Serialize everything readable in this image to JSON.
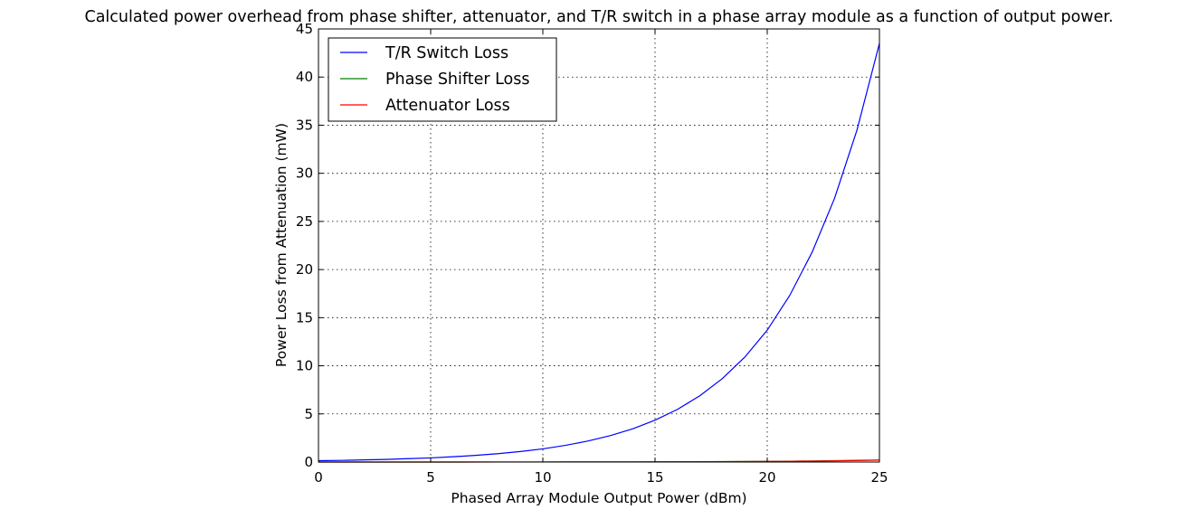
{
  "chart_data": {
    "type": "line",
    "title": "Calculated power overhead from phase shifter, attenuator, and T/R switch in a phase array module as a function of output power.",
    "xlabel": "Phased Array Module Output Power (dBm)",
    "ylabel": "Power Loss from Attenuation (mW)",
    "xlim": [
      0,
      25
    ],
    "ylim": [
      0,
      45
    ],
    "xticks": [
      0,
      5,
      10,
      15,
      20,
      25
    ],
    "yticks": [
      0,
      5,
      10,
      15,
      20,
      25,
      30,
      35,
      40,
      45
    ],
    "grid": true,
    "legend_position": "top-left",
    "x": [
      0,
      1,
      2,
      3,
      4,
      5,
      6,
      7,
      8,
      9,
      10,
      11,
      12,
      13,
      14,
      15,
      16,
      17,
      18,
      19,
      20,
      21,
      22,
      23,
      24,
      25
    ],
    "series": [
      {
        "name": "T/R Switch Loss",
        "color": "#0000ff",
        "values": [
          0.14,
          0.17,
          0.22,
          0.27,
          0.35,
          0.43,
          0.55,
          0.69,
          0.87,
          1.09,
          1.37,
          1.73,
          2.18,
          2.74,
          3.45,
          4.35,
          5.47,
          6.89,
          8.67,
          10.9,
          13.7,
          17.3,
          21.8,
          27.4,
          34.5,
          43.5
        ]
      },
      {
        "name": "Phase Shifter Loss",
        "color": "#008000",
        "values": [
          0.001,
          0.001,
          0.001,
          0.001,
          0.002,
          0.002,
          0.003,
          0.004,
          0.004,
          0.006,
          0.007,
          0.009,
          0.011,
          0.014,
          0.018,
          0.022,
          0.028,
          0.035,
          0.044,
          0.055,
          0.069,
          0.087,
          0.11,
          0.138,
          0.174,
          0.219
        ]
      },
      {
        "name": "Attenuator Loss",
        "color": "#ff0000",
        "values": [
          0.001,
          0.001,
          0.001,
          0.001,
          0.002,
          0.002,
          0.002,
          0.003,
          0.004,
          0.005,
          0.006,
          0.008,
          0.01,
          0.012,
          0.016,
          0.02,
          0.025,
          0.031,
          0.039,
          0.049,
          0.062,
          0.078,
          0.098,
          0.123,
          0.155,
          0.195
        ]
      }
    ]
  }
}
